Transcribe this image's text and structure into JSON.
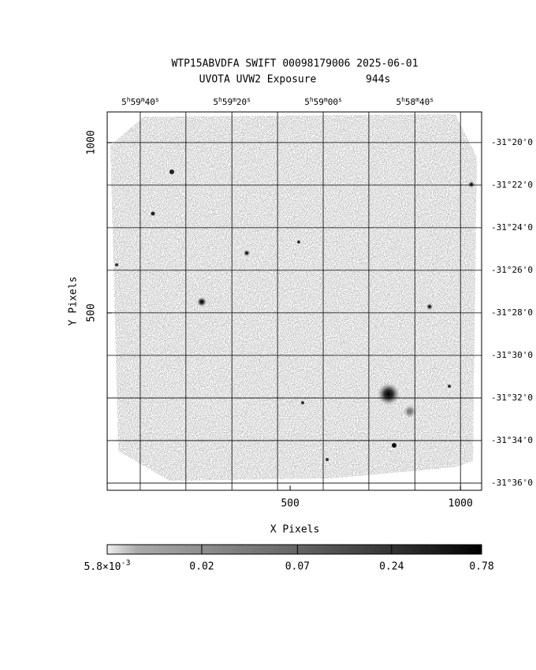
{
  "chart_data": {
    "type": "image",
    "title": "WTP15ABVDFA SWIFT 00098179006 2025-06-01",
    "subtitle": "UVOTA UVW2 Exposure        944s",
    "xlabel": "X Pixels",
    "ylabel": "Y Pixels",
    "xlim": [
      -37,
      1062
    ],
    "ylim": [
      -21,
      1090
    ],
    "xticks": [
      500,
      1000
    ],
    "yticks": [
      500,
      1000
    ],
    "ra_ticks": [
      {
        "value": 60,
        "label": [
          "5",
          "h",
          "59",
          "m",
          "40",
          "s"
        ]
      },
      {
        "value": 194,
        "label": null
      },
      {
        "value": 329,
        "label": [
          "5",
          "h",
          "59",
          "m",
          "20",
          "s"
        ]
      },
      {
        "value": 463,
        "label": null
      },
      {
        "value": 597,
        "label": [
          "5",
          "h",
          "59",
          "m",
          "00",
          "s"
        ]
      },
      {
        "value": 731,
        "label": null
      },
      {
        "value": 866,
        "label": [
          "5",
          "h",
          "58",
          "m",
          "40",
          "s"
        ]
      },
      {
        "value": 1000,
        "label": null
      }
    ],
    "dec_ticks": [
      {
        "value": 1000,
        "label": "-31°20'0"
      },
      {
        "value": 875,
        "label": "-31°22'0"
      },
      {
        "value": 750,
        "label": "-31°24'0"
      },
      {
        "value": 625,
        "label": "-31°26'0"
      },
      {
        "value": 500,
        "label": "-31°28'0"
      },
      {
        "value": 375,
        "label": "-31°30'0"
      },
      {
        "value": 250,
        "label": "-31°32'0"
      },
      {
        "value": 125,
        "label": "-31°34'0"
      },
      {
        "value": 0,
        "label": "-31°36'0"
      }
    ],
    "colorbar": {
      "scale": "log",
      "lim": [
        0.0058,
        0.78
      ],
      "ticks": [
        {
          "value": 0.0058,
          "label": "5.8×10",
          "label_exponent": "-3"
        },
        0.02,
        0.07,
        0.24,
        0.78
      ]
    }
  }
}
